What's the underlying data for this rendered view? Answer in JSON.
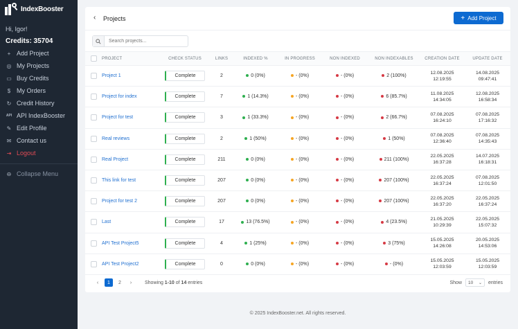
{
  "brand": {
    "name": "IndexBooster"
  },
  "user": {
    "greeting": "Hi, Igor!",
    "credits": "Credits: 35704"
  },
  "sidebar": {
    "items": [
      {
        "icon": "+",
        "label": "Add Project"
      },
      {
        "icon": "◎",
        "label": "My Projects"
      },
      {
        "icon": "▭",
        "label": "Buy Credits"
      },
      {
        "icon": "$",
        "label": "My Orders"
      },
      {
        "icon": "↻",
        "label": "Credit History"
      },
      {
        "icon": "API",
        "label": "API IndexBooster"
      },
      {
        "icon": "✎",
        "label": "Edit Profile"
      },
      {
        "icon": "✉",
        "label": "Contact us"
      },
      {
        "icon": "⇥",
        "label": "Logout"
      }
    ],
    "collapse": {
      "icon": "⊖",
      "label": "Collapse Menu"
    }
  },
  "header": {
    "title": "Projects",
    "add_label": "Add Project"
  },
  "search": {
    "placeholder": "Search projects..."
  },
  "table": {
    "columns": [
      "PROJECT",
      "CHECK STATUS",
      "LINKS",
      "INDEXED %",
      "IN PROGRESS",
      "NON INDEXED",
      "NON INDEXABLES",
      "CREATION DATE",
      "UPDATE DATE"
    ],
    "rows": [
      {
        "name": "Project 1",
        "status": "Complete",
        "links": "2",
        "indexed": "0 (0%)",
        "progress": "- (0%)",
        "nonindexed": "- (0%)",
        "nonindexables": "2 (100%)",
        "created_d": "12.08.2025",
        "created_t": "12:19:55",
        "updated_d": "14.08.2025",
        "updated_t": "09:47:41",
        "indexed_color": "green",
        "nonx_color": "red"
      },
      {
        "name": "Project for index",
        "status": "Complete",
        "links": "7",
        "indexed": "1 (14.3%)",
        "progress": "- (0%)",
        "nonindexed": "- (0%)",
        "nonindexables": "6 (85.7%)",
        "created_d": "11.08.2025",
        "created_t": "14:34:05",
        "updated_d": "12.08.2025",
        "updated_t": "16:58:34",
        "indexed_color": "green",
        "nonx_color": "red"
      },
      {
        "name": "Project for test",
        "status": "Complete",
        "links": "3",
        "indexed": "1 (33.3%)",
        "progress": "- (0%)",
        "nonindexed": "- (0%)",
        "nonindexables": "2 (66.7%)",
        "created_d": "07.08.2025",
        "created_t": "16:24:10",
        "updated_d": "07.08.2025",
        "updated_t": "17:16:32",
        "indexed_color": "green",
        "nonx_color": "red"
      },
      {
        "name": "Real reviews",
        "status": "Complete",
        "links": "2",
        "indexed": "1 (50%)",
        "progress": "- (0%)",
        "nonindexed": "- (0%)",
        "nonindexables": "1 (50%)",
        "created_d": "07.08.2025",
        "created_t": "12:36:40",
        "updated_d": "07.08.2025",
        "updated_t": "14:35:43",
        "indexed_color": "green",
        "nonx_color": "red"
      },
      {
        "name": "Real Project",
        "status": "Complete",
        "links": "211",
        "indexed": "0 (0%)",
        "progress": "- (0%)",
        "nonindexed": "- (0%)",
        "nonindexables": "211 (100%)",
        "created_d": "22.05.2025",
        "created_t": "16:37:28",
        "updated_d": "14.07.2025",
        "updated_t": "16:18:31",
        "indexed_color": "green",
        "nonx_color": "red"
      },
      {
        "name": "This link for test",
        "status": "Complete",
        "links": "207",
        "indexed": "0 (0%)",
        "progress": "- (0%)",
        "nonindexed": "- (0%)",
        "nonindexables": "207 (100%)",
        "created_d": "22.05.2025",
        "created_t": "16:37:24",
        "updated_d": "07.08.2025",
        "updated_t": "12:01:50",
        "indexed_color": "green",
        "nonx_color": "red"
      },
      {
        "name": "Project for test 2",
        "status": "Complete",
        "links": "207",
        "indexed": "0 (0%)",
        "progress": "- (0%)",
        "nonindexed": "- (0%)",
        "nonindexables": "207 (100%)",
        "created_d": "22.05.2025",
        "created_t": "16:37:20",
        "updated_d": "22.05.2025",
        "updated_t": "16:37:24",
        "indexed_color": "green",
        "nonx_color": "red"
      },
      {
        "name": "Last",
        "status": "Complete",
        "links": "17",
        "indexed": "13 (76.5%)",
        "progress": "- (0%)",
        "nonindexed": "- (0%)",
        "nonindexables": "4 (23.5%)",
        "created_d": "21.05.2025",
        "created_t": "10:29:39",
        "updated_d": "22.05.2025",
        "updated_t": "15:07:32",
        "indexed_color": "green",
        "nonx_color": "red"
      },
      {
        "name": "API Test Project5",
        "status": "Complete",
        "links": "4",
        "indexed": "1 (25%)",
        "progress": "- (0%)",
        "nonindexed": "- (0%)",
        "nonindexables": "3 (75%)",
        "created_d": "15.05.2025",
        "created_t": "14:26:08",
        "updated_d": "20.05.2025",
        "updated_t": "14:53:06",
        "indexed_color": "green",
        "nonx_color": "red"
      },
      {
        "name": "API Test Project2",
        "status": "Complete",
        "links": "0",
        "indexed": "0 (0%)",
        "progress": "- (0%)",
        "nonindexed": "- (0%)",
        "nonindexables": "- (0%)",
        "created_d": "15.05.2025",
        "created_t": "12:03:59",
        "updated_d": "15.05.2025",
        "updated_t": "12:03:59",
        "indexed_color": "green",
        "nonx_color": "red"
      }
    ]
  },
  "pagination": {
    "prev": "‹",
    "pages": [
      "1",
      "2"
    ],
    "next": "›",
    "info_prefix": "Showing ",
    "info_range": "1-10",
    "info_mid": " of ",
    "info_total": "14",
    "info_suffix": " entries"
  },
  "page_size": {
    "label": "Show",
    "value": "10",
    "suffix": "entries"
  },
  "footer": {
    "text": "© 2025 IndexBooster.net. All rights reserved."
  },
  "colors": {
    "accent": "#0d6ad1",
    "sidebar_bg": "#1e2733",
    "complete": "#2eaf4f",
    "progress": "#f5a524",
    "error": "#d63a44"
  }
}
